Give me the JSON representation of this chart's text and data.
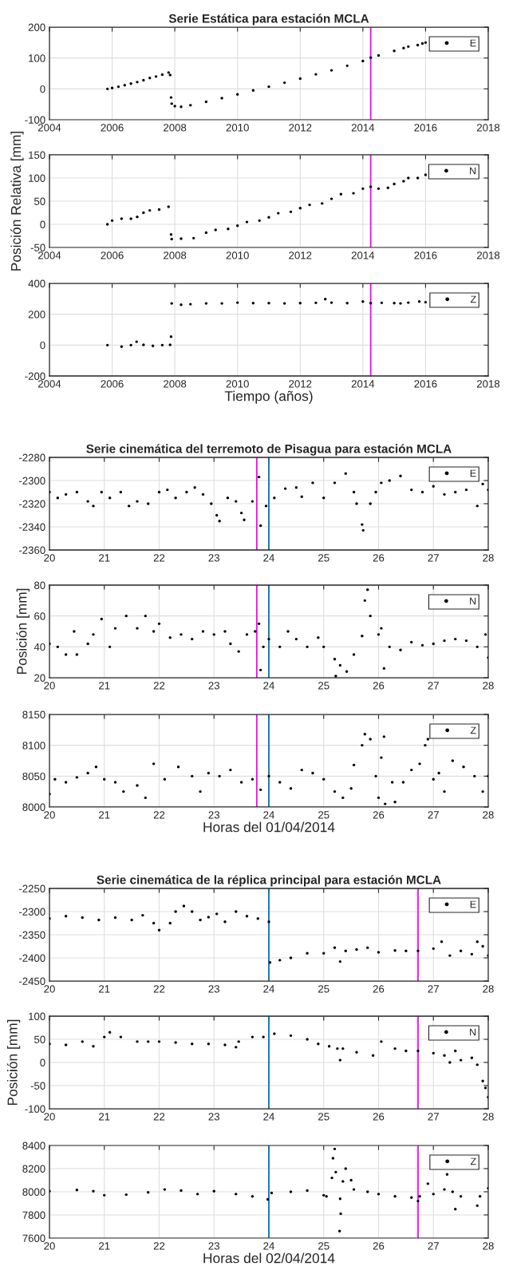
{
  "chart_data": [
    {
      "type": "scatter",
      "title": "Serie Estática para estación MCLA",
      "xlim": [
        2004,
        2018
      ],
      "xticks": [
        2004,
        2006,
        2008,
        2010,
        2012,
        2014,
        2016,
        2018
      ],
      "ylim": [
        -100,
        200
      ],
      "yticks": [
        -100,
        0,
        100,
        200
      ],
      "grid": true,
      "legend": "top right",
      "marker": "circle",
      "ref_lines": [
        {
          "axis": "x",
          "value": 2014.25,
          "color": "#ff00ff"
        }
      ],
      "series": [
        {
          "name": "E",
          "color": "#000000",
          "x": [
            2005.85,
            2006.0,
            2006.2,
            2006.4,
            2006.6,
            2006.8,
            2007.0,
            2007.2,
            2007.4,
            2007.6,
            2007.8,
            2007.85,
            2007.88,
            2007.9,
            2008.0,
            2008.2,
            2008.5,
            2009.0,
            2009.5,
            2010.0,
            2010.5,
            2011.0,
            2011.5,
            2012.0,
            2012.5,
            2013.0,
            2013.5,
            2014.0,
            2014.25,
            2014.5,
            2015.0,
            2015.3,
            2015.45,
            2015.75,
            2015.9,
            2016.0
          ],
          "values": [
            0,
            3,
            7,
            12,
            17,
            22,
            28,
            35,
            40,
            46,
            53,
            45,
            -28,
            -48,
            -56,
            -58,
            -53,
            -42,
            -30,
            -18,
            -5,
            7,
            20,
            33,
            47,
            60,
            75,
            90,
            101,
            108,
            123,
            132,
            137,
            142,
            147,
            150
          ]
        }
      ]
    },
    {
      "type": "scatter",
      "ylabel": "Posición Relativa [mm]",
      "xlim": [
        2004,
        2018
      ],
      "xticks": [
        2004,
        2006,
        2008,
        2010,
        2012,
        2014,
        2016,
        2018
      ],
      "ylim": [
        -50,
        150
      ],
      "yticks": [
        -50,
        0,
        50,
        100,
        150
      ],
      "grid": true,
      "legend": "top right",
      "marker": "circle",
      "ref_lines": [
        {
          "axis": "x",
          "value": 2014.25,
          "color": "#ff00ff"
        }
      ],
      "series": [
        {
          "name": "N",
          "color": "#000000",
          "x": [
            2005.85,
            2006.0,
            2006.3,
            2006.6,
            2006.8,
            2007.0,
            2007.2,
            2007.5,
            2007.8,
            2007.88,
            2007.9,
            2008.2,
            2008.6,
            2009.0,
            2009.3,
            2009.7,
            2010.0,
            2010.3,
            2010.7,
            2011.0,
            2011.3,
            2011.7,
            2012.0,
            2012.3,
            2012.7,
            2013.0,
            2013.3,
            2013.7,
            2014.0,
            2014.25,
            2014.5,
            2014.8,
            2015.0,
            2015.3,
            2015.45,
            2015.75,
            2016.0
          ],
          "values": [
            0,
            8,
            12,
            12,
            16,
            25,
            30,
            32,
            38,
            -22,
            -32,
            -31,
            -30,
            -18,
            -12,
            -10,
            -3,
            5,
            8,
            15,
            24,
            27,
            35,
            42,
            45,
            55,
            65,
            67,
            77,
            81,
            77,
            79,
            87,
            93,
            100,
            100,
            107
          ]
        }
      ]
    },
    {
      "type": "scatter",
      "xlabel": "Tiempo (años)",
      "xlim": [
        2004,
        2018
      ],
      "xticks": [
        2004,
        2006,
        2008,
        2010,
        2012,
        2014,
        2016,
        2018
      ],
      "ylim": [
        -200,
        400
      ],
      "yticks": [
        -200,
        0,
        200,
        400
      ],
      "grid": true,
      "legend": "top right",
      "marker": "circle",
      "ref_lines": [
        {
          "axis": "x",
          "value": 2014.25,
          "color": "#ff00ff"
        }
      ],
      "series": [
        {
          "name": "Z",
          "color": "#000000",
          "x": [
            2005.85,
            2006.3,
            2006.6,
            2006.78,
            2007.0,
            2007.3,
            2007.6,
            2007.85,
            2007.88,
            2007.9,
            2008.2,
            2008.5,
            2009.0,
            2009.5,
            2010.0,
            2010.5,
            2011.0,
            2011.5,
            2012.0,
            2012.5,
            2012.8,
            2013.0,
            2013.5,
            2014.0,
            2014.25,
            2014.6,
            2015.0,
            2015.2,
            2015.45,
            2015.8,
            2016.0
          ],
          "values": [
            0,
            -10,
            0,
            22,
            2,
            -5,
            0,
            2,
            55,
            270,
            262,
            265,
            270,
            270,
            275,
            272,
            272,
            270,
            272,
            274,
            298,
            275,
            272,
            282,
            272,
            274,
            272,
            270,
            275,
            282,
            278
          ]
        }
      ]
    },
    {
      "type": "scatter",
      "title": "Serie cinemática del terremoto de Pisagua para estación MCLA",
      "xlim": [
        20,
        28
      ],
      "xticks": [
        20,
        21,
        22,
        23,
        24,
        25,
        26,
        27,
        28
      ],
      "ylim": [
        -2360,
        -2280
      ],
      "yticks": [
        -2360,
        -2340,
        -2320,
        -2300,
        -2280
      ],
      "grid": true,
      "legend": "top right",
      "marker": "circle",
      "ref_lines": [
        {
          "axis": "x",
          "value": 23.78,
          "color": "#ff00ff"
        },
        {
          "axis": "x",
          "value": 24.0,
          "color": "#0072bd"
        }
      ],
      "series": [
        {
          "name": "E",
          "color": "#000000",
          "x": [
            20.0,
            20.15,
            20.3,
            20.5,
            20.7,
            20.8,
            20.95,
            21.1,
            21.3,
            21.45,
            21.6,
            21.8,
            22.0,
            22.15,
            22.3,
            22.5,
            22.65,
            22.8,
            22.95,
            23.05,
            23.1,
            23.25,
            23.4,
            23.5,
            23.55,
            23.7,
            23.82,
            23.85,
            23.95,
            24.1,
            24.3,
            24.5,
            24.6,
            24.8,
            25.0,
            25.2,
            25.4,
            25.55,
            25.6,
            25.7,
            25.72,
            25.85,
            25.95,
            26.05,
            26.2,
            26.4,
            26.6,
            26.8,
            27.0,
            27.2,
            27.4,
            27.6,
            27.8,
            27.9,
            28.0
          ],
          "values": [
            -2310,
            -2315,
            -2312,
            -2310,
            -2318,
            -2322,
            -2310,
            -2315,
            -2310,
            -2322,
            -2318,
            -2320,
            -2310,
            -2308,
            -2315,
            -2310,
            -2306,
            -2312,
            -2320,
            -2330,
            -2335,
            -2315,
            -2318,
            -2328,
            -2334,
            -2318,
            -2297,
            -2339,
            -2322,
            -2315,
            -2307,
            -2306,
            -2314,
            -2302,
            -2315,
            -2302,
            -2294,
            -2310,
            -2320,
            -2338,
            -2343,
            -2320,
            -2310,
            -2302,
            -2300,
            -2296,
            -2308,
            -2310,
            -2305,
            -2312,
            -2310,
            -2308,
            -2322,
            -2303,
            -2308
          ]
        }
      ]
    },
    {
      "type": "scatter",
      "ylabel": "Posición [mm]",
      "xlim": [
        20,
        28
      ],
      "xticks": [
        20,
        21,
        22,
        23,
        24,
        25,
        26,
        27,
        28
      ],
      "ylim": [
        20,
        80
      ],
      "yticks": [
        20,
        40,
        60,
        80
      ],
      "grid": true,
      "legend": "top right",
      "marker": "circle",
      "ref_lines": [
        {
          "axis": "x",
          "value": 23.78,
          "color": "#ff00ff"
        },
        {
          "axis": "x",
          "value": 24.0,
          "color": "#0072bd"
        }
      ],
      "series": [
        {
          "name": "N",
          "color": "#000000",
          "x": [
            20.0,
            20.15,
            20.3,
            20.45,
            20.5,
            20.7,
            20.8,
            20.95,
            21.1,
            21.2,
            21.4,
            21.6,
            21.75,
            21.9,
            22.0,
            22.2,
            22.4,
            22.6,
            22.8,
            23.0,
            23.2,
            23.3,
            23.45,
            23.6,
            23.75,
            23.82,
            23.85,
            23.9,
            24.0,
            24.2,
            24.35,
            24.5,
            24.7,
            24.9,
            25.0,
            25.2,
            25.22,
            25.3,
            25.42,
            25.55,
            25.7,
            25.75,
            25.8,
            25.85,
            26.0,
            26.05,
            26.1,
            26.2,
            26.4,
            26.6,
            26.8,
            27.0,
            27.2,
            27.4,
            27.6,
            27.8,
            27.95,
            28.0
          ],
          "values": [
            42,
            40,
            35,
            50,
            35,
            42,
            48,
            58,
            40,
            52,
            60,
            52,
            60,
            50,
            55,
            46,
            48,
            45,
            50,
            48,
            50,
            42,
            37,
            48,
            50,
            55,
            25,
            40,
            45,
            40,
            50,
            45,
            40,
            46,
            40,
            32,
            21,
            28,
            24,
            35,
            47,
            70,
            77,
            60,
            48,
            52,
            26,
            40,
            38,
            43,
            41,
            42,
            44,
            45,
            44,
            40,
            48,
            33
          ]
        }
      ]
    },
    {
      "type": "scatter",
      "xlabel": "Horas del 01/04/2014",
      "xlim": [
        20,
        28
      ],
      "xticks": [
        20,
        21,
        22,
        23,
        24,
        25,
        26,
        27,
        28
      ],
      "ylim": [
        8000,
        8150
      ],
      "yticks": [
        8000,
        8050,
        8100,
        8150
      ],
      "grid": true,
      "legend": "top right",
      "marker": "circle",
      "ref_lines": [
        {
          "axis": "x",
          "value": 23.78,
          "color": "#ff00ff"
        },
        {
          "axis": "x",
          "value": 24.0,
          "color": "#0072bd"
        }
      ],
      "series": [
        {
          "name": "Z",
          "color": "#000000",
          "x": [
            20.0,
            20.1,
            20.3,
            20.5,
            20.7,
            20.85,
            21.0,
            21.2,
            21.35,
            21.6,
            21.75,
            21.9,
            22.1,
            22.35,
            22.6,
            22.75,
            22.9,
            23.1,
            23.3,
            23.5,
            23.7,
            23.85,
            24.0,
            24.2,
            24.4,
            24.6,
            24.8,
            25.0,
            25.2,
            25.35,
            25.5,
            25.55,
            25.7,
            25.75,
            25.85,
            25.95,
            26.0,
            26.05,
            26.1,
            26.12,
            26.25,
            26.3,
            26.45,
            26.6,
            26.75,
            26.85,
            26.9,
            27.0,
            27.1,
            27.2,
            27.35,
            27.55,
            27.75,
            27.9,
            28.0
          ],
          "values": [
            8021,
            8045,
            8040,
            8048,
            8055,
            8065,
            8045,
            8040,
            8025,
            8035,
            8015,
            8070,
            8045,
            8065,
            8050,
            8025,
            8055,
            8050,
            8060,
            8040,
            8045,
            8028,
            8050,
            8040,
            8030,
            8060,
            8055,
            8045,
            8025,
            8015,
            8030,
            8068,
            8100,
            8118,
            8110,
            8050,
            8015,
            8080,
            8114,
            8005,
            8040,
            8008,
            8040,
            8060,
            8070,
            8100,
            8110,
            8045,
            8055,
            8025,
            8075,
            8065,
            8050,
            8025,
            8050
          ]
        }
      ]
    },
    {
      "type": "scatter",
      "title": "Serie cinemática de la réplica principal para estación MCLA",
      "xlim": [
        20,
        28
      ],
      "xticks": [
        20,
        21,
        22,
        23,
        24,
        25,
        26,
        27,
        28
      ],
      "ylim": [
        -2450,
        -2250
      ],
      "yticks": [
        -2450,
        -2400,
        -2350,
        -2300,
        -2250
      ],
      "grid": true,
      "legend": "top right",
      "marker": "circle",
      "ref_lines": [
        {
          "axis": "x",
          "value": 24.0,
          "color": "#0072bd"
        },
        {
          "axis": "x",
          "value": 26.72,
          "color": "#ff00ff"
        }
      ],
      "series": [
        {
          "name": "E",
          "color": "#000000",
          "x": [
            20.0,
            20.3,
            20.6,
            20.9,
            21.2,
            21.5,
            21.7,
            21.9,
            22.0,
            22.2,
            22.3,
            22.45,
            22.6,
            22.75,
            22.9,
            23.05,
            23.2,
            23.4,
            23.6,
            23.8,
            24.0,
            24.02,
            24.2,
            24.4,
            24.7,
            25.0,
            25.2,
            25.3,
            25.4,
            25.6,
            25.8,
            26.0,
            26.3,
            26.5,
            26.72,
            27.0,
            27.15,
            27.3,
            27.5,
            27.7,
            27.8,
            27.9,
            28.0
          ],
          "values": [
            -2315,
            -2310,
            -2313,
            -2318,
            -2313,
            -2318,
            -2308,
            -2325,
            -2340,
            -2325,
            -2300,
            -2288,
            -2300,
            -2318,
            -2312,
            -2305,
            -2322,
            -2300,
            -2310,
            -2315,
            -2322,
            -2410,
            -2405,
            -2400,
            -2390,
            -2390,
            -2378,
            -2408,
            -2385,
            -2382,
            -2378,
            -2388,
            -2384,
            -2385,
            -2385,
            -2380,
            -2365,
            -2395,
            -2385,
            -2392,
            -2365,
            -2375,
            -2395
          ]
        }
      ]
    },
    {
      "type": "scatter",
      "ylabel": "Posición [mm]",
      "xlim": [
        20,
        28
      ],
      "xticks": [
        20,
        21,
        22,
        23,
        24,
        25,
        26,
        27,
        28
      ],
      "ylim": [
        -100,
        100
      ],
      "yticks": [
        -100,
        -50,
        0,
        50,
        100
      ],
      "grid": true,
      "legend": "top right",
      "marker": "circle",
      "ref_lines": [
        {
          "axis": "x",
          "value": 24.0,
          "color": "#0072bd"
        },
        {
          "axis": "x",
          "value": 26.72,
          "color": "#ff00ff"
        }
      ],
      "series": [
        {
          "name": "N",
          "color": "#000000",
          "x": [
            20.0,
            20.3,
            20.6,
            20.8,
            21.0,
            21.1,
            21.3,
            21.6,
            21.8,
            22.0,
            22.3,
            22.6,
            22.9,
            23.2,
            23.4,
            23.45,
            23.7,
            23.9,
            24.1,
            24.4,
            24.7,
            24.9,
            25.1,
            25.25,
            25.3,
            25.35,
            25.6,
            25.9,
            26.05,
            26.3,
            26.5,
            26.72,
            27.0,
            27.2,
            27.3,
            27.4,
            27.5,
            27.7,
            27.8,
            27.9,
            27.95,
            28.0
          ],
          "values": [
            40,
            38,
            45,
            35,
            55,
            65,
            55,
            45,
            45,
            45,
            43,
            40,
            40,
            38,
            33,
            45,
            55,
            55,
            62,
            58,
            50,
            40,
            35,
            30,
            5,
            30,
            22,
            15,
            45,
            30,
            25,
            25,
            20,
            15,
            0,
            25,
            5,
            10,
            -5,
            -40,
            -55,
            -75
          ]
        }
      ]
    },
    {
      "type": "scatter",
      "xlabel": "Horas del 02/04/2014",
      "xlim": [
        20,
        28
      ],
      "xticks": [
        20,
        21,
        22,
        23,
        24,
        25,
        26,
        27,
        28
      ],
      "ylim": [
        7600,
        8400
      ],
      "yticks": [
        7600,
        7800,
        8000,
        8200,
        8400
      ],
      "grid": true,
      "legend": "top right",
      "marker": "circle",
      "ref_lines": [
        {
          "axis": "x",
          "value": 24.0,
          "color": "#0072bd"
        },
        {
          "axis": "x",
          "value": 26.72,
          "color": "#ff00ff"
        }
      ],
      "series": [
        {
          "name": "Z",
          "color": "#000000",
          "x": [
            20.0,
            20.5,
            20.8,
            21.0,
            21.4,
            21.8,
            22.1,
            22.4,
            22.7,
            23.0,
            23.4,
            23.7,
            23.98,
            24.05,
            24.4,
            24.7,
            25.0,
            25.05,
            25.15,
            25.17,
            25.2,
            25.22,
            25.29,
            25.3,
            25.31,
            25.35,
            25.4,
            25.5,
            25.55,
            25.8,
            26.0,
            26.3,
            26.6,
            26.72,
            26.75,
            26.9,
            27.0,
            27.2,
            27.25,
            27.35,
            27.4,
            27.5,
            27.8,
            27.85,
            28.0
          ],
          "values": [
            8005,
            8015,
            8005,
            7970,
            7975,
            7995,
            8020,
            8010,
            7980,
            8005,
            7980,
            7960,
            7935,
            7990,
            8000,
            8010,
            7970,
            7960,
            8120,
            8290,
            8370,
            8170,
            7660,
            7940,
            7810,
            8090,
            8200,
            8100,
            8020,
            8000,
            7980,
            7960,
            7950,
            7920,
            7960,
            8070,
            7980,
            8020,
            8150,
            8000,
            7850,
            7960,
            7880,
            7960,
            8030
          ]
        }
      ]
    }
  ]
}
